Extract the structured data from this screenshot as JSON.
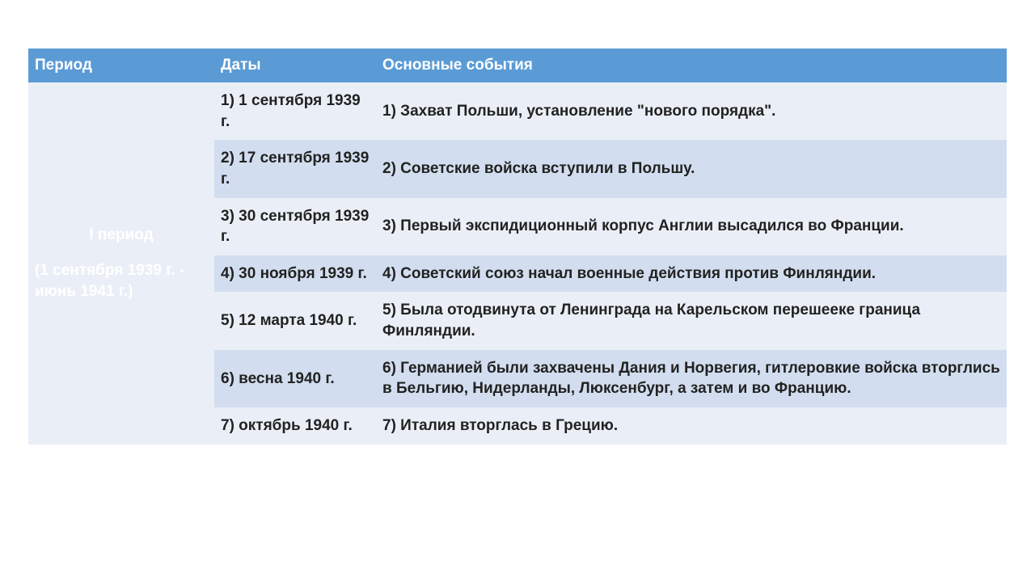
{
  "colors": {
    "header_bg": "#5b9bd5",
    "header_text": "#ffffff",
    "row_odd_bg": "#eaeff7",
    "row_even_bg": "#d2deef",
    "period_text": "#ffffff",
    "body_text": "#222222"
  },
  "fontsize": {
    "header": 19,
    "body": 19
  },
  "columns": {
    "period": "Период",
    "dates": "Даты",
    "events": "Основные события"
  },
  "period": {
    "title": "I период",
    "range": "(1 сентября 1939 г. - июнь 1941 г.)"
  },
  "rows": [
    {
      "date": "1) 1 сентября 1939 г.",
      "event": "1) Захват Польши, установление \"нового порядка\"."
    },
    {
      "date": "2) 17 сентября 1939 г.",
      "event": "2) Советские войска вступили в Польшу."
    },
    {
      "date": "3) 30 сентября 1939 г.",
      "event": "3) Первый экспидиционный корпус Англии высадился во Франции."
    },
    {
      "date": "4) 30 ноября 1939 г.",
      "event": "4) Советский союз начал военные действия против Финляндии."
    },
    {
      "date": "5) 12 марта 1940 г.",
      "event": "5) Была отодвинута от Ленинграда на Карельском перешееке граница Финляндии."
    },
    {
      "date": "6) весна 1940 г.",
      "event": "6) Германией были захвачены Дания и Норвегия, гитлеровкие войска вторглись в Бельгию, Нидерланды, Люксенбург, а затем и во Францию."
    },
    {
      "date": "7) октябрь 1940 г.",
      "event": "7) Италия вторглась в Грецию."
    }
  ]
}
